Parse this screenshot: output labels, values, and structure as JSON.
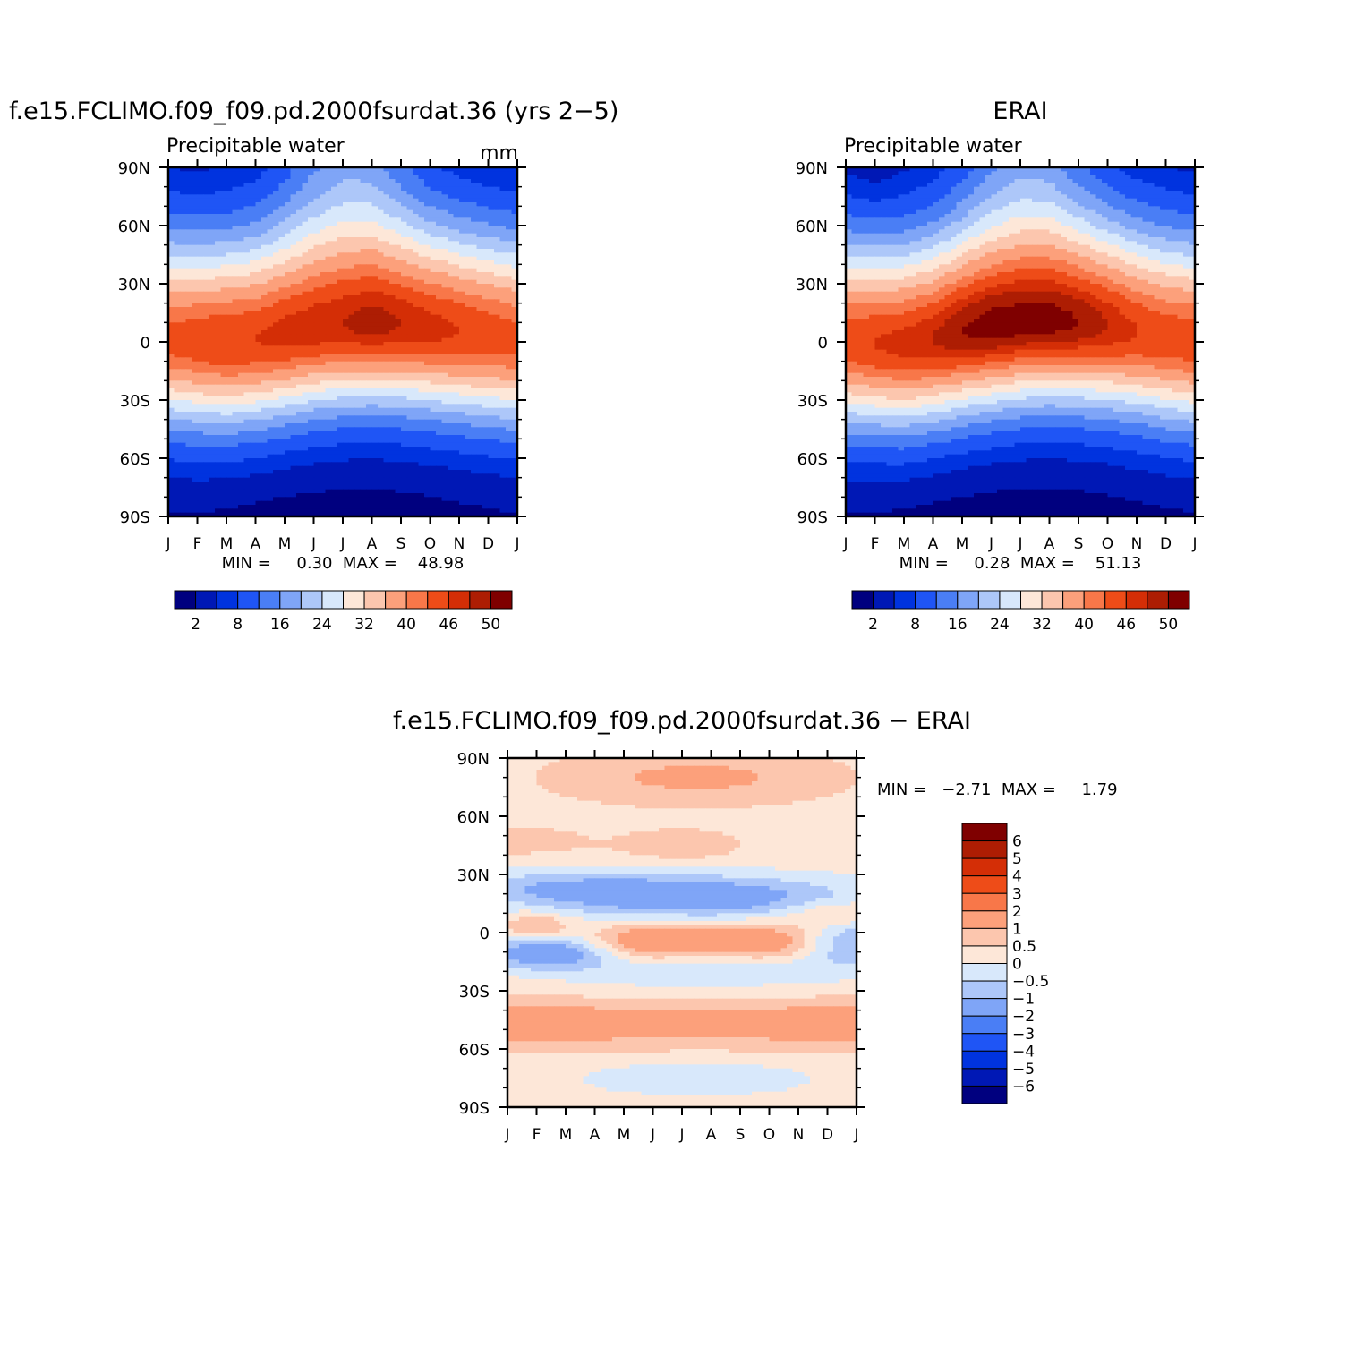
{
  "chart_data": [
    {
      "type": "heatmap",
      "title": "f.e15.FCLIMO.f09_f09.pd.2000fsurdat.36 (yrs 2−5)",
      "subtitle": "Precipitable water",
      "units": "mm",
      "x_ticks": [
        "J",
        "F",
        "M",
        "A",
        "M",
        "J",
        "J",
        "A",
        "S",
        "O",
        "N",
        "D",
        "J"
      ],
      "y_ticks": [
        "90N",
        "60N",
        "30N",
        "0",
        "30S",
        "60S",
        "90S"
      ],
      "ylim": [
        -90,
        90
      ],
      "stats_text": "MIN =     0.30  MAX =    48.98",
      "min": 0.3,
      "max": 48.98,
      "field": {
        "model": "tropical",
        "itcz_lat": [
          1.0,
          0.0,
          -0.5,
          1.0,
          4.0,
          7.0,
          9.0,
          10.0,
          9.0,
          7.0,
          5.0,
          3.0,
          1.0
        ],
        "peak": [
          44.0,
          45.0,
          46.0,
          46.0,
          47.0,
          47.5,
          48.0,
          48.98,
          48.0,
          47.0,
          46.0,
          45.0,
          44.0
        ],
        "north_pole": [
          3.0,
          2.8,
          3.2,
          4.5,
          8.0,
          13.0,
          16.0,
          15.0,
          10.0,
          6.0,
          4.0,
          3.2,
          3.0
        ],
        "south_pole": [
          1.4,
          1.3,
          1.0,
          0.7,
          0.5,
          0.4,
          0.3,
          0.35,
          0.5,
          0.7,
          1.0,
          1.2,
          1.4
        ]
      },
      "colorbar": {
        "orientation": "horizontal",
        "labels": [
          "2",
          "8",
          "16",
          "24",
          "32",
          "40",
          "46",
          "50"
        ],
        "levels": [
          2,
          5,
          8,
          12,
          16,
          20,
          24,
          28,
          32,
          36,
          40,
          43,
          46,
          48,
          50
        ],
        "colors": [
          "#00007f",
          "#0018b5",
          "#0033df",
          "#1f55f5",
          "#4a7ef5",
          "#7fa5f7",
          "#adc7f9",
          "#d8e8fb",
          "#fde7d8",
          "#fcc6ae",
          "#fca07b",
          "#f87749",
          "#ee4c18",
          "#d42e06",
          "#ad1d03",
          "#7f0000"
        ]
      }
    },
    {
      "type": "heatmap",
      "title": "ERAI",
      "subtitle": "Precipitable water",
      "x_ticks": [
        "J",
        "F",
        "M",
        "A",
        "M",
        "J",
        "J",
        "A",
        "S",
        "O",
        "N",
        "D",
        "J"
      ],
      "y_ticks": [
        "90N",
        "60N",
        "30N",
        "0",
        "30S",
        "60S",
        "90S"
      ],
      "ylim": [
        -90,
        90
      ],
      "stats_text": "MIN =     0.28  MAX =    51.13",
      "min": 0.28,
      "max": 51.13,
      "field": {
        "model": "tropical",
        "itcz_lat": [
          0.0,
          -1.0,
          -1.5,
          1.0,
          5.0,
          8.0,
          10.0,
          11.0,
          10.0,
          8.0,
          5.0,
          2.0,
          0.0
        ],
        "peak": [
          45.0,
          46.0,
          47.0,
          48.0,
          50.0,
          51.13,
          51.0,
          51.0,
          50.0,
          48.0,
          46.0,
          45.0,
          45.0
        ],
        "north_pole": [
          2.6,
          1.5,
          2.8,
          4.2,
          7.5,
          12.5,
          15.5,
          14.5,
          9.5,
          5.8,
          3.8,
          3.0,
          2.6
        ],
        "south_pole": [
          1.3,
          1.2,
          0.9,
          0.6,
          0.45,
          0.35,
          0.28,
          0.3,
          0.45,
          0.65,
          0.95,
          1.15,
          1.3
        ]
      },
      "colorbar": {
        "orientation": "horizontal",
        "labels": [
          "2",
          "8",
          "16",
          "24",
          "32",
          "40",
          "46",
          "50"
        ],
        "levels": [
          2,
          5,
          8,
          12,
          16,
          20,
          24,
          28,
          32,
          36,
          40,
          43,
          46,
          48,
          50
        ],
        "colors": [
          "#00007f",
          "#0018b5",
          "#0033df",
          "#1f55f5",
          "#4a7ef5",
          "#7fa5f7",
          "#adc7f9",
          "#d8e8fb",
          "#fde7d8",
          "#fcc6ae",
          "#fca07b",
          "#f87749",
          "#ee4c18",
          "#d42e06",
          "#ad1d03",
          "#7f0000"
        ]
      }
    },
    {
      "type": "heatmap",
      "title": "f.e15.FCLIMO.f09_f09.pd.2000fsurdat.36 − ERAI",
      "x_ticks": [
        "J",
        "F",
        "M",
        "A",
        "M",
        "J",
        "J",
        "A",
        "S",
        "O",
        "N",
        "D",
        "J"
      ],
      "y_ticks": [
        "90N",
        "60N",
        "30N",
        "0",
        "30S",
        "60S",
        "90S"
      ],
      "ylim": [
        -90,
        90
      ],
      "stats_text": "MIN =   −2.71  MAX =     1.79",
      "min": -2.71,
      "max": 1.79,
      "field": {
        "model": "anomaly",
        "bands": [
          {
            "lat": 80,
            "width": 10,
            "amp": 0.9,
            "x": 6.5,
            "xw": 3.5
          },
          {
            "lat": 47,
            "width": 7,
            "amp": 0.4,
            "x": 0.5,
            "xw": 2.0
          },
          {
            "lat": 45,
            "width": 6,
            "amp": 0.6,
            "x": 6.0,
            "xw": 1.5
          },
          {
            "lat": 18,
            "width": 8,
            "amp": -1.8,
            "x": 6.5,
            "xw": 4.0
          },
          {
            "lat": 24,
            "width": 6,
            "amp": -0.8,
            "x": 1.5,
            "xw": 3.0
          },
          {
            "lat": 10,
            "width": 5,
            "amp": 1.0,
            "x": 11.3,
            "xw": 1.2
          },
          {
            "lat": 3,
            "width": 5,
            "amp": 1.0,
            "x": 1.0,
            "xw": 0.8
          },
          {
            "lat": -5,
            "width": 7,
            "amp": 1.7,
            "x": 5.0,
            "xw": 1.5
          },
          {
            "lat": -5,
            "width": 7,
            "amp": 1.6,
            "x": 8.8,
            "xw": 1.5
          },
          {
            "lat": -10,
            "width": 6,
            "amp": -1.8,
            "x": 1.3,
            "xw": 1.5
          },
          {
            "lat": -5,
            "width": 9,
            "amp": -1.3,
            "x": 12.0,
            "xw": 1.5
          },
          {
            "lat": -18,
            "width": 8,
            "amp": -0.8,
            "x": 6.5,
            "xw": 3.5
          },
          {
            "lat": -47,
            "width": 9,
            "amp": 1.1,
            "x": 6.0,
            "xw": 12.0
          },
          {
            "lat": -48,
            "width": 6,
            "amp": 0.6,
            "x": 1.0,
            "xw": 1.2
          },
          {
            "lat": -48,
            "width": 6,
            "amp": 0.6,
            "x": 11.5,
            "xw": 1.2
          },
          {
            "lat": -75,
            "width": 7,
            "amp": -0.6,
            "x": 6.5,
            "xw": 3.0
          }
        ],
        "background": 0.25
      },
      "colorbar": {
        "orientation": "vertical",
        "labels": [
          "6",
          "5",
          "4",
          "3",
          "2",
          "1",
          "0.5",
          "0",
          "−0.5",
          "−1",
          "−2",
          "−3",
          "−4",
          "−5",
          "−6"
        ],
        "levels": [
          -6,
          -5,
          -4,
          -3,
          -2,
          -1,
          -0.5,
          0,
          0.5,
          1,
          2,
          3,
          4,
          5,
          6
        ],
        "colors": [
          "#00007f",
          "#0018b5",
          "#0033df",
          "#1f55f5",
          "#4a7ef5",
          "#7fa5f7",
          "#adc7f9",
          "#d8e8fb",
          "#fde7d8",
          "#fcc6ae",
          "#fca07b",
          "#f87749",
          "#ee4c18",
          "#d42e06",
          "#ad1d03",
          "#7f0000"
        ]
      }
    }
  ]
}
